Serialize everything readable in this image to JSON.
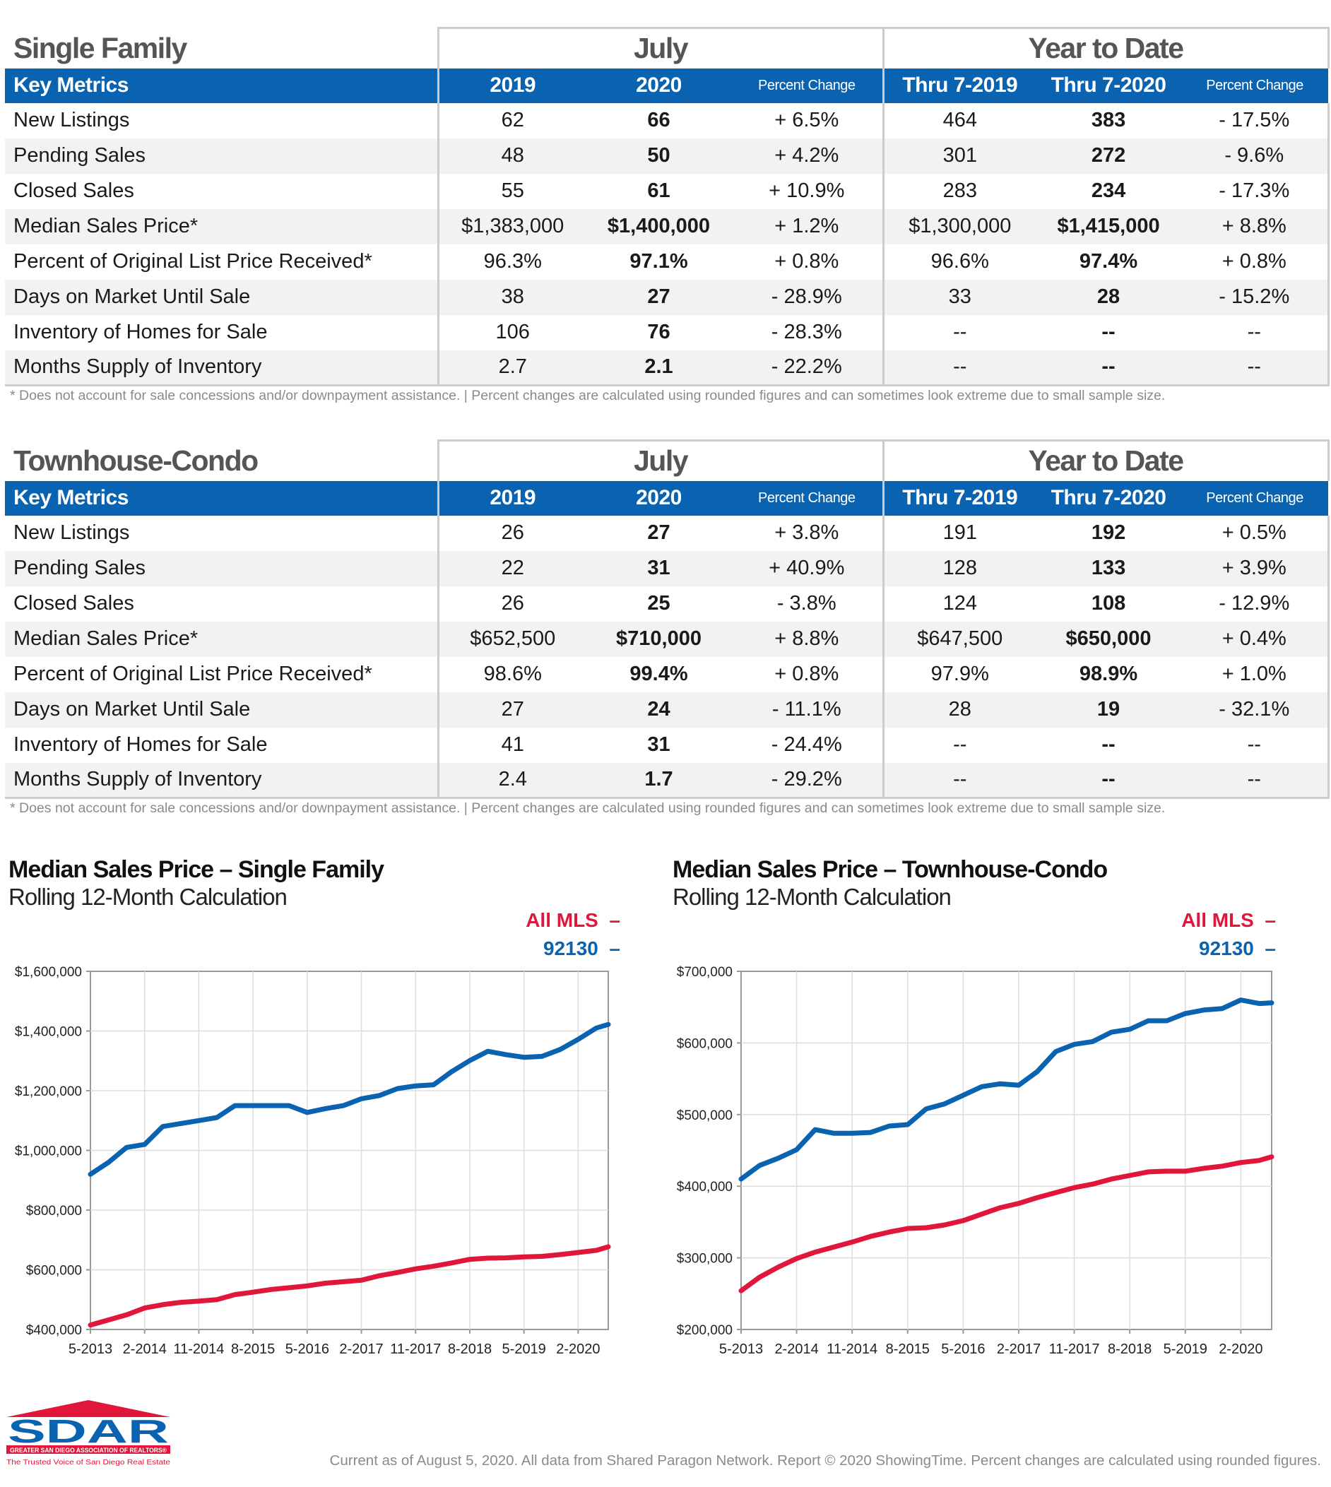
{
  "tables": [
    {
      "title": "Single Family",
      "group_july": "July",
      "group_ytd": "Year to Date",
      "headers": [
        "Key Metrics",
        "2019",
        "2020",
        "Percent Change",
        "Thru 7-2019",
        "Thru 7-2020",
        "Percent Change"
      ],
      "rows": [
        [
          "New Listings",
          "62",
          "66",
          "+ 6.5%",
          "464",
          "383",
          "- 17.5%"
        ],
        [
          "Pending Sales",
          "48",
          "50",
          "+ 4.2%",
          "301",
          "272",
          "- 9.6%"
        ],
        [
          "Closed Sales",
          "55",
          "61",
          "+ 10.9%",
          "283",
          "234",
          "- 17.3%"
        ],
        [
          "Median Sales Price*",
          "$1,383,000",
          "$1,400,000",
          "+ 1.2%",
          "$1,300,000",
          "$1,415,000",
          "+ 8.8%"
        ],
        [
          "Percent of Original List Price Received*",
          "96.3%",
          "97.1%",
          "+ 0.8%",
          "96.6%",
          "97.4%",
          "+ 0.8%"
        ],
        [
          "Days on Market Until Sale",
          "38",
          "27",
          "- 28.9%",
          "33",
          "28",
          "- 15.2%"
        ],
        [
          "Inventory of Homes for Sale",
          "106",
          "76",
          "- 28.3%",
          "--",
          "--",
          "--"
        ],
        [
          "Months Supply of Inventory",
          "2.7",
          "2.1",
          "- 22.2%",
          "--",
          "--",
          "--"
        ]
      ],
      "footnote": "* Does not account for sale concessions and/or downpayment assistance.  |  Percent changes are calculated using rounded figures and can sometimes look extreme due to small sample size."
    },
    {
      "title": "Townhouse-Condo",
      "group_july": "July",
      "group_ytd": "Year to Date",
      "headers": [
        "Key Metrics",
        "2019",
        "2020",
        "Percent Change",
        "Thru 7-2019",
        "Thru 7-2020",
        "Percent Change"
      ],
      "rows": [
        [
          "New Listings",
          "26",
          "27",
          "+ 3.8%",
          "191",
          "192",
          "+ 0.5%"
        ],
        [
          "Pending Sales",
          "22",
          "31",
          "+ 40.9%",
          "128",
          "133",
          "+ 3.9%"
        ],
        [
          "Closed Sales",
          "26",
          "25",
          "- 3.8%",
          "124",
          "108",
          "- 12.9%"
        ],
        [
          "Median Sales Price*",
          "$652,500",
          "$710,000",
          "+ 8.8%",
          "$647,500",
          "$650,000",
          "+ 0.4%"
        ],
        [
          "Percent of Original List Price Received*",
          "98.6%",
          "99.4%",
          "+ 0.8%",
          "97.9%",
          "98.9%",
          "+ 1.0%"
        ],
        [
          "Days on Market Until Sale",
          "27",
          "24",
          "- 11.1%",
          "28",
          "19",
          "- 32.1%"
        ],
        [
          "Inventory of Homes for Sale",
          "41",
          "31",
          "- 24.4%",
          "--",
          "--",
          "--"
        ],
        [
          "Months Supply of Inventory",
          "2.4",
          "1.7",
          "- 29.2%",
          "--",
          "--",
          "--"
        ]
      ],
      "footnote": "* Does not account for sale concessions and/or downpayment assistance.  |  Percent changes are calculated using rounded figures and can sometimes look extreme due to small sample size."
    }
  ],
  "colors": {
    "header_blue": "#0a63b0",
    "series_all_mls": "#e0173a",
    "series_92130": "#0a63b0"
  },
  "chart_data": [
    {
      "type": "line",
      "title": "Median Sales Price – Single Family",
      "subtitle": "Rolling 12-Month Calculation",
      "x": [
        "5-2013",
        "8-2013",
        "11-2013",
        "2-2014",
        "5-2014",
        "8-2014",
        "11-2014",
        "2-2015",
        "5-2015",
        "8-2015",
        "11-2015",
        "2-2016",
        "5-2016",
        "8-2016",
        "11-2016",
        "2-2017",
        "5-2017",
        "8-2017",
        "11-2017",
        "2-2018",
        "5-2018",
        "8-2018",
        "11-2018",
        "2-2019",
        "5-2019",
        "8-2019",
        "11-2019",
        "2-2020",
        "5-2020",
        "7-2020"
      ],
      "x_ticks": [
        "5-2013",
        "2-2014",
        "11-2014",
        "8-2015",
        "5-2016",
        "2-2017",
        "11-2017",
        "8-2018",
        "5-2019",
        "2-2020"
      ],
      "y_ticks": [
        "$400,000",
        "$600,000",
        "$800,000",
        "$1,000,000",
        "$1,200,000",
        "$1,400,000",
        "$1,600,000"
      ],
      "ylim": [
        400000,
        1600000
      ],
      "grid": true,
      "legend": "top-right",
      "series": [
        {
          "name": "All MLS",
          "color": "#e0173a",
          "values": [
            415000,
            432000,
            449000,
            472000,
            483000,
            491000,
            495000,
            500000,
            517000,
            525000,
            534000,
            540000,
            546000,
            555000,
            560000,
            565000,
            580000,
            591000,
            603000,
            612000,
            623000,
            635000,
            639000,
            640000,
            643000,
            645000,
            651000,
            658000,
            665000,
            677000
          ]
        },
        {
          "name": "92130",
          "color": "#0a63b0",
          "values": [
            920000,
            960000,
            1010000,
            1020000,
            1080000,
            1090000,
            1100000,
            1110000,
            1150000,
            1150000,
            1150000,
            1150000,
            1127000,
            1140000,
            1150000,
            1173000,
            1184000,
            1207000,
            1216000,
            1220000,
            1264000,
            1301000,
            1332000,
            1321000,
            1312000,
            1315000,
            1338000,
            1372000,
            1410000,
            1422000
          ]
        }
      ]
    },
    {
      "type": "line",
      "title": "Median Sales Price – Townhouse-Condo",
      "subtitle": "Rolling 12-Month Calculation",
      "x": [
        "5-2013",
        "8-2013",
        "11-2013",
        "2-2014",
        "5-2014",
        "8-2014",
        "11-2014",
        "2-2015",
        "5-2015",
        "8-2015",
        "11-2015",
        "2-2016",
        "5-2016",
        "8-2016",
        "11-2016",
        "2-2017",
        "5-2017",
        "8-2017",
        "11-2017",
        "2-2018",
        "5-2018",
        "8-2018",
        "11-2018",
        "2-2019",
        "5-2019",
        "8-2019",
        "11-2019",
        "2-2020",
        "5-2020",
        "7-2020"
      ],
      "x_ticks": [
        "5-2013",
        "2-2014",
        "11-2014",
        "8-2015",
        "5-2016",
        "2-2017",
        "11-2017",
        "8-2018",
        "5-2019",
        "2-2020"
      ],
      "y_ticks": [
        "$200,000",
        "$300,000",
        "$400,000",
        "$500,000",
        "$600,000",
        "$700,000"
      ],
      "ylim": [
        200000,
        700000
      ],
      "grid": true,
      "legend": "top-right",
      "series": [
        {
          "name": "All MLS",
          "color": "#e0173a",
          "values": [
            254000,
            273000,
            287000,
            299000,
            308000,
            315000,
            322000,
            330000,
            336000,
            341000,
            342000,
            346000,
            352000,
            361000,
            370000,
            376000,
            384000,
            391000,
            398000,
            403000,
            410000,
            415000,
            420000,
            421000,
            421000,
            425000,
            428000,
            433000,
            436000,
            441000
          ]
        },
        {
          "name": "92130",
          "color": "#0a63b0",
          "values": [
            410000,
            429000,
            439000,
            451000,
            479000,
            474000,
            474000,
            475000,
            484000,
            486000,
            508000,
            515000,
            527000,
            539000,
            543000,
            541000,
            560000,
            588000,
            598000,
            602000,
            615000,
            619000,
            631000,
            631000,
            641000,
            646000,
            648000,
            660000,
            655000,
            656000
          ]
        }
      ]
    }
  ],
  "footer": "Current as of August 5, 2020. All data from Shared Paragon Network. Report © 2020 ShowingTime. Percent changes are calculated using rounded figures.",
  "logo": {
    "text": "SDAR",
    "banner": "GREATER SAN DIEGO ASSOCIATION OF REALTORS®",
    "tagline": "The Trusted Voice of San Diego Real Estate"
  }
}
